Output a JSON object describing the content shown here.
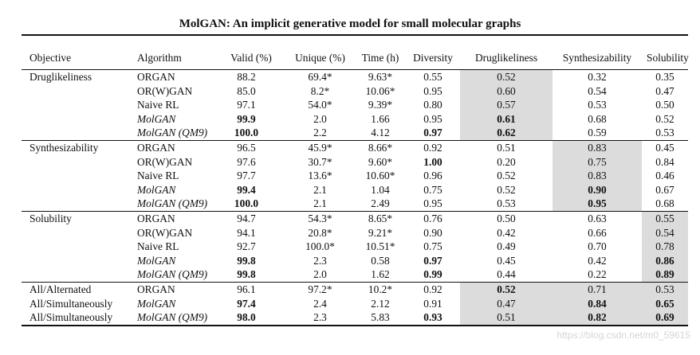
{
  "title": "MolGAN: An implicit generative model for small molecular graphs",
  "columns": [
    "Objective",
    "Algorithm",
    "Valid (%)",
    "Unique (%)",
    "Time (h)",
    "Diversity",
    "Druglikeliness",
    "Synthesizability",
    "Solubility"
  ],
  "rows": [
    {
      "objective": "Druglikeliness",
      "algorithm": "ORGAN",
      "italic": false,
      "valid": "88.2",
      "unique": "69.4*",
      "time": "9.63*",
      "diversity": "0.55",
      "drug": "0.52",
      "synth": "0.32",
      "sol": "0.35",
      "bold": [],
      "hl": [
        "drug"
      ]
    },
    {
      "objective": "",
      "algorithm": "OR(W)GAN",
      "italic": false,
      "valid": "85.0",
      "unique": "8.2*",
      "time": "10.06*",
      "diversity": "0.95",
      "drug": "0.60",
      "synth": "0.54",
      "sol": "0.47",
      "bold": [],
      "hl": [
        "drug"
      ]
    },
    {
      "objective": "",
      "algorithm": "Naive RL",
      "italic": false,
      "valid": "97.1",
      "unique": "54.0*",
      "time": "9.39*",
      "diversity": "0.80",
      "drug": "0.57",
      "synth": "0.53",
      "sol": "0.50",
      "bold": [],
      "hl": [
        "drug"
      ]
    },
    {
      "objective": "",
      "algorithm": "MolGAN",
      "italic": true,
      "valid": "99.9",
      "unique": "2.0",
      "time": "1.66",
      "diversity": "0.95",
      "drug": "0.61",
      "synth": "0.68",
      "sol": "0.52",
      "bold": [
        "valid",
        "drug"
      ],
      "hl": [
        "drug"
      ]
    },
    {
      "objective": "",
      "algorithm": "MolGAN (QM9)",
      "italic": true,
      "valid": "100.0",
      "unique": "2.2",
      "time": "4.12",
      "diversity": "0.97",
      "drug": "0.62",
      "synth": "0.59",
      "sol": "0.53",
      "bold": [
        "valid",
        "diversity",
        "drug"
      ],
      "hl": [
        "drug"
      ]
    },
    {
      "objective": "Synthesizability",
      "algorithm": "ORGAN",
      "italic": false,
      "valid": "96.5",
      "unique": "45.9*",
      "time": "8.66*",
      "diversity": "0.92",
      "drug": "0.51",
      "synth": "0.83",
      "sol": "0.45",
      "bold": [],
      "hl": [
        "synth"
      ]
    },
    {
      "objective": "",
      "algorithm": "OR(W)GAN",
      "italic": false,
      "valid": "97.6",
      "unique": "30.7*",
      "time": "9.60*",
      "diversity": "1.00",
      "drug": "0.20",
      "synth": "0.75",
      "sol": "0.84",
      "bold": [
        "diversity"
      ],
      "hl": [
        "synth"
      ]
    },
    {
      "objective": "",
      "algorithm": "Naive RL",
      "italic": false,
      "valid": "97.7",
      "unique": "13.6*",
      "time": "10.60*",
      "diversity": "0.96",
      "drug": "0.52",
      "synth": "0.83",
      "sol": "0.46",
      "bold": [],
      "hl": [
        "synth"
      ]
    },
    {
      "objective": "",
      "algorithm": "MolGAN",
      "italic": true,
      "valid": "99.4",
      "unique": "2.1",
      "time": "1.04",
      "diversity": "0.75",
      "drug": "0.52",
      "synth": "0.90",
      "sol": "0.67",
      "bold": [
        "valid",
        "synth"
      ],
      "hl": [
        "synth"
      ]
    },
    {
      "objective": "",
      "algorithm": "MolGAN (QM9)",
      "italic": true,
      "valid": "100.0",
      "unique": "2.1",
      "time": "2.49",
      "diversity": "0.95",
      "drug": "0.53",
      "synth": "0.95",
      "sol": "0.68",
      "bold": [
        "valid",
        "synth"
      ],
      "hl": [
        "synth"
      ]
    },
    {
      "objective": "Solubility",
      "algorithm": "ORGAN",
      "italic": false,
      "valid": "94.7",
      "unique": "54.3*",
      "time": "8.65*",
      "diversity": "0.76",
      "drug": "0.50",
      "synth": "0.63",
      "sol": "0.55",
      "bold": [],
      "hl": [
        "sol"
      ]
    },
    {
      "objective": "",
      "algorithm": "OR(W)GAN",
      "italic": false,
      "valid": "94.1",
      "unique": "20.8*",
      "time": "9.21*",
      "diversity": "0.90",
      "drug": "0.42",
      "synth": "0.66",
      "sol": "0.54",
      "bold": [],
      "hl": [
        "sol"
      ]
    },
    {
      "objective": "",
      "algorithm": "Naive RL",
      "italic": false,
      "valid": "92.7",
      "unique": "100.0*",
      "time": "10.51*",
      "diversity": "0.75",
      "drug": "0.49",
      "synth": "0.70",
      "sol": "0.78",
      "bold": [],
      "hl": [
        "sol"
      ]
    },
    {
      "objective": "",
      "algorithm": "MolGAN",
      "italic": true,
      "valid": "99.8",
      "unique": "2.3",
      "time": "0.58",
      "diversity": "0.97",
      "drug": "0.45",
      "synth": "0.42",
      "sol": "0.86",
      "bold": [
        "valid",
        "diversity",
        "sol"
      ],
      "hl": [
        "sol"
      ]
    },
    {
      "objective": "",
      "algorithm": "MolGAN (QM9)",
      "italic": true,
      "valid": "99.8",
      "unique": "2.0",
      "time": "1.62",
      "diversity": "0.99",
      "drug": "0.44",
      "synth": "0.22",
      "sol": "0.89",
      "bold": [
        "valid",
        "diversity",
        "sol"
      ],
      "hl": [
        "sol"
      ]
    },
    {
      "objective": "All/Alternated",
      "algorithm": "ORGAN",
      "italic": false,
      "valid": "96.1",
      "unique": "97.2*",
      "time": "10.2*",
      "diversity": "0.92",
      "drug": "0.52",
      "synth": "0.71",
      "sol": "0.53",
      "bold": [
        "drug"
      ],
      "hl": [
        "drug",
        "synth",
        "sol"
      ]
    },
    {
      "objective": "All/Simultaneously",
      "algorithm": "MolGAN",
      "italic": true,
      "valid": "97.4",
      "unique": "2.4",
      "time": "2.12",
      "diversity": "0.91",
      "drug": "0.47",
      "synth": "0.84",
      "sol": "0.65",
      "bold": [
        "valid",
        "synth",
        "sol"
      ],
      "hl": [
        "drug",
        "synth",
        "sol"
      ]
    },
    {
      "objective": "All/Simultaneously",
      "algorithm": "MolGAN (QM9)",
      "italic": true,
      "valid": "98.0",
      "unique": "2.3",
      "time": "5.83",
      "diversity": "0.93",
      "drug": "0.51",
      "synth": "0.82",
      "sol": "0.69",
      "bold": [
        "valid",
        "diversity",
        "synth",
        "sol"
      ],
      "hl": [
        "drug",
        "synth",
        "sol"
      ]
    }
  ],
  "group_starts": [
    0,
    5,
    10,
    15
  ],
  "watermark": "https://blog.csdn.net/m0_59615"
}
